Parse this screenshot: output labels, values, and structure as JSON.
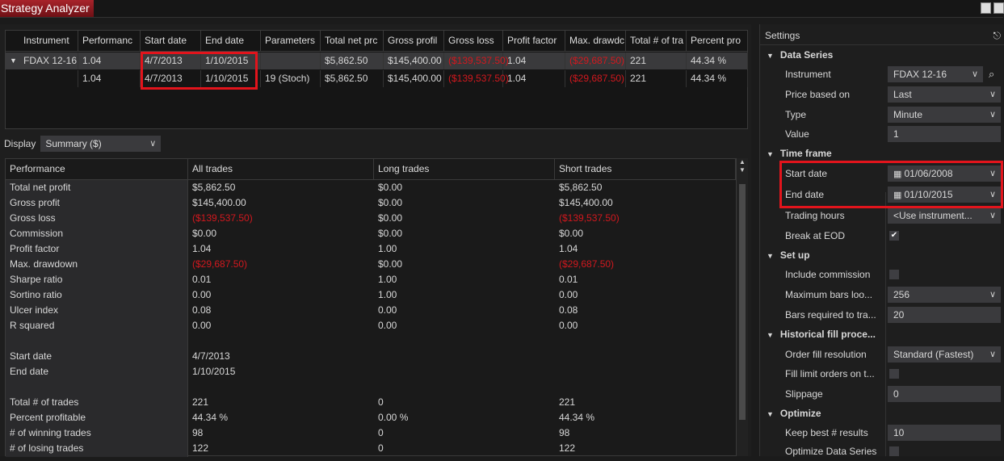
{
  "window": {
    "title": "Strategy Analyzer"
  },
  "results_table": {
    "columns": [
      "Instrument",
      "Performanc",
      "Start date",
      "End date",
      "Parameters",
      "Total net prc",
      "Gross profil",
      "Gross loss",
      "Profit factor",
      "Max. drawdc",
      "Total # of tra",
      "Percent pro"
    ],
    "rows": [
      [
        "FDAX 12-16",
        "1.04",
        "4/7/2013",
        "1/10/2015",
        "",
        "$5,862.50",
        "$145,400.00",
        "($139,537.50)",
        "1.04",
        "($29,687.50)",
        "221",
        "44.34 %"
      ],
      [
        "",
        "1.04",
        "4/7/2013",
        "1/10/2015",
        "19 (Stoch)",
        "$5,862.50",
        "$145,400.00",
        "($139,537.50)",
        "1.04",
        "($29,687.50)",
        "221",
        "44.34 %"
      ]
    ]
  },
  "display": {
    "label": "Display",
    "value": "Summary ($)"
  },
  "performance": {
    "columns": [
      "Performance",
      "All trades",
      "Long trades",
      "Short trades"
    ],
    "rows": [
      [
        "Total net profit",
        "$5,862.50",
        "$0.00",
        "$5,862.50"
      ],
      [
        "Gross profit",
        "$145,400.00",
        "$0.00",
        "$145,400.00"
      ],
      [
        "Gross loss",
        "($139,537.50)",
        "$0.00",
        "($139,537.50)"
      ],
      [
        "Commission",
        "$0.00",
        "$0.00",
        "$0.00"
      ],
      [
        "Profit factor",
        "1.04",
        "1.00",
        "1.04"
      ],
      [
        "Max. drawdown",
        "($29,687.50)",
        "$0.00",
        "($29,687.50)"
      ],
      [
        "Sharpe ratio",
        "0.01",
        "1.00",
        "0.01"
      ],
      [
        "Sortino ratio",
        "0.00",
        "1.00",
        "0.00"
      ],
      [
        "Ulcer index",
        "0.08",
        "0.00",
        "0.08"
      ],
      [
        "R squared",
        "0.00",
        "0.00",
        "0.00"
      ],
      [
        "",
        "",
        "",
        ""
      ],
      [
        "Start date",
        "4/7/2013",
        "",
        ""
      ],
      [
        "End date",
        "1/10/2015",
        "",
        ""
      ],
      [
        "",
        "",
        "",
        ""
      ],
      [
        "Total # of trades",
        "221",
        "0",
        "221"
      ],
      [
        "Percent profitable",
        "44.34 %",
        "0.00 %",
        "44.34 %"
      ],
      [
        "# of winning trades",
        "98",
        "0",
        "98"
      ],
      [
        "# of losing trades",
        "122",
        "0",
        "122"
      ]
    ]
  },
  "settings": {
    "title": "Settings",
    "items": [
      {
        "type": "cat",
        "label": "Data Series"
      },
      {
        "type": "select",
        "label": "Instrument",
        "value": "FDAX 12-16",
        "search": true
      },
      {
        "type": "select",
        "label": "Price based on",
        "value": "Last"
      },
      {
        "type": "select",
        "label": "Type",
        "value": "Minute"
      },
      {
        "type": "input",
        "label": "Value",
        "value": "1"
      },
      {
        "type": "cat",
        "label": "Time frame"
      },
      {
        "type": "date",
        "label": "Start date",
        "value": "01/06/2008"
      },
      {
        "type": "date",
        "label": "End date",
        "value": "01/10/2015"
      },
      {
        "type": "select",
        "label": "Trading hours",
        "value": "<Use instrument..."
      },
      {
        "type": "check",
        "label": "Break at EOD",
        "checked": true
      },
      {
        "type": "cat",
        "label": "Set up"
      },
      {
        "type": "check",
        "label": "Include commission",
        "checked": false
      },
      {
        "type": "select",
        "label": "Maximum bars loo...",
        "value": "256"
      },
      {
        "type": "input",
        "label": "Bars required to tra...",
        "value": "20"
      },
      {
        "type": "cat",
        "label": "Historical fill proce..."
      },
      {
        "type": "select",
        "label": "Order fill resolution",
        "value": "Standard (Fastest)"
      },
      {
        "type": "check",
        "label": "Fill limit orders on t...",
        "checked": false
      },
      {
        "type": "input",
        "label": "Slippage",
        "value": "0"
      },
      {
        "type": "cat",
        "label": "Optimize"
      },
      {
        "type": "input",
        "label": "Keep best # results",
        "value": "10"
      },
      {
        "type": "check",
        "label": "Optimize Data Series",
        "checked": false
      }
    ]
  },
  "colors": {
    "negative": "#d2181e",
    "highlight_box": "#e2141c",
    "title_tab": "#a8232b"
  }
}
